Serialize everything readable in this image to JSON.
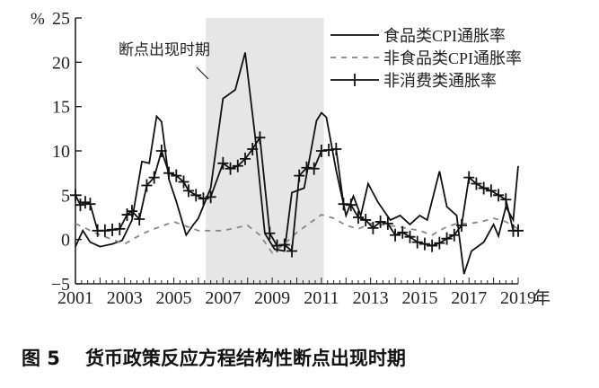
{
  "chart_data": {
    "type": "line",
    "title": "货币政策反应方程结构性断点出现时期",
    "figure_label": "图 5",
    "xlabel": "年",
    "ylabel": "%",
    "ylim": [
      -5,
      25
    ],
    "yticks": [
      -5,
      0,
      5,
      10,
      15,
      20,
      25
    ],
    "xlim": [
      2001,
      2019
    ],
    "xticks": [
      2001,
      2003,
      2005,
      2007,
      2009,
      2011,
      2013,
      2015,
      2017,
      2019
    ],
    "grid": false,
    "legend_position": "upper right",
    "shaded_region": {
      "label": "断点出现时期",
      "x_start": 2006.3,
      "x_end": 2011.1,
      "color": "#e6e6e6"
    },
    "series": [
      {
        "name": "食品类CPI通胀率",
        "style": "solid",
        "x": [
          2001.0,
          2001.3,
          2001.6,
          2002.0,
          2002.5,
          2002.9,
          2003.3,
          2003.7,
          2004.0,
          2004.3,
          2004.5,
          2004.8,
          2005.1,
          2005.5,
          2005.8,
          2006.0,
          2006.5,
          2007.0,
          2007.5,
          2007.9,
          2008.3,
          2008.7,
          2009.1,
          2009.5,
          2009.8,
          2010.3,
          2010.8,
          2011.0,
          2011.2,
          2011.6,
          2012.0,
          2012.3,
          2012.6,
          2012.9,
          2013.3,
          2013.8,
          2014.2,
          2014.6,
          2015.0,
          2015.3,
          2015.8,
          2016.1,
          2016.5,
          2016.8,
          2017.1,
          2017.6,
          2018.0,
          2018.2,
          2018.5,
          2018.8,
          2019.0
        ],
        "y": [
          -0.8,
          1.0,
          -0.3,
          -0.8,
          -0.5,
          -0.1,
          2.2,
          8.8,
          8.6,
          13.9,
          13.3,
          6.8,
          4.3,
          0.5,
          1.7,
          2.4,
          5.8,
          15.9,
          16.9,
          21.1,
          11.8,
          0.7,
          -1.1,
          -1.3,
          5.3,
          5.8,
          13.4,
          14.3,
          13.8,
          7.8,
          2.7,
          4.9,
          2.7,
          6.3,
          4.2,
          2.2,
          2.7,
          1.7,
          2.7,
          2.2,
          7.7,
          3.7,
          2.7,
          -3.9,
          -1.3,
          -0.3,
          1.7,
          0.4,
          3.7,
          2.2,
          8.3
        ]
      },
      {
        "name": "非食品类CPI通胀率",
        "style": "dashed",
        "x": [
          2001.0,
          2002.0,
          2003.0,
          2003.5,
          2004.0,
          2004.5,
          2005.0,
          2006.0,
          2007.0,
          2007.5,
          2008.0,
          2008.5,
          2009.0,
          2009.5,
          2010.0,
          2010.5,
          2011.0,
          2011.5,
          2012.0,
          2012.5,
          2013.0,
          2014.0,
          2015.0,
          2015.5,
          2016.0,
          2016.5,
          2017.0,
          2017.5,
          2018.0,
          2018.5,
          2019.0
        ],
        "y": [
          1.8,
          0.5,
          -0.5,
          0.3,
          1.0,
          1.5,
          2.0,
          1.0,
          1.0,
          1.3,
          1.6,
          0.5,
          -1.5,
          -0.5,
          0.8,
          1.8,
          2.8,
          2.4,
          1.6,
          1.2,
          1.8,
          1.5,
          1.0,
          0.5,
          1.3,
          1.8,
          1.8,
          2.0,
          2.4,
          2.0,
          1.2
        ]
      },
      {
        "name": "非消费类通胀率",
        "style": "solid-plus",
        "x": [
          2001.0,
          2001.2,
          2001.4,
          2001.6,
          2001.9,
          2002.2,
          2002.5,
          2002.8,
          2003.1,
          2003.3,
          2003.6,
          2003.9,
          2004.2,
          2004.5,
          2004.8,
          2005.1,
          2005.4,
          2005.6,
          2005.9,
          2006.2,
          2006.5,
          2007.0,
          2007.3,
          2007.6,
          2007.9,
          2008.2,
          2008.5,
          2008.9,
          2009.2,
          2009.5,
          2009.8,
          2010.1,
          2010.4,
          2010.7,
          2011.0,
          2011.3,
          2011.6,
          2011.9,
          2012.2,
          2012.5,
          2012.8,
          2013.1,
          2013.4,
          2013.7,
          2014.0,
          2014.3,
          2014.6,
          2014.9,
          2015.2,
          2015.5,
          2015.8,
          2016.1,
          2016.4,
          2016.7,
          2017.0,
          2017.3,
          2017.6,
          2017.9,
          2018.2,
          2018.5,
          2018.8,
          2019.0
        ],
        "y": [
          5.0,
          3.9,
          4.2,
          4.0,
          1.0,
          1.0,
          1.1,
          1.2,
          2.8,
          3.2,
          2.3,
          6.1,
          7.0,
          10.0,
          7.5,
          7.2,
          6.5,
          5.5,
          5.0,
          4.6,
          4.8,
          8.6,
          8.0,
          8.3,
          9.1,
          10.2,
          11.5,
          0.7,
          -0.7,
          -0.6,
          -1.3,
          7.2,
          8.1,
          8.0,
          10.0,
          10.1,
          10.2,
          4.0,
          3.9,
          2.5,
          2.2,
          1.3,
          2.0,
          1.8,
          0.5,
          0.8,
          0.3,
          -0.3,
          -0.5,
          -0.7,
          -0.4,
          0.1,
          0.5,
          1.6,
          7.0,
          6.3,
          5.8,
          5.5,
          5.0,
          4.5,
          1.0,
          1.0
        ]
      }
    ],
    "annotations": [
      {
        "text": "断点出现时期",
        "arrow_to_year": 2006.3
      }
    ]
  },
  "labels": {
    "y_unit": "%",
    "x_unit": "年",
    "annotation": "断点出现时期",
    "legend": [
      "食品类CPI通胀率",
      "非食品类CPI通胀率",
      "非消费类通胀率"
    ],
    "fig": "图 5",
    "caption": "货币政策反应方程结构性断点出现时期"
  }
}
